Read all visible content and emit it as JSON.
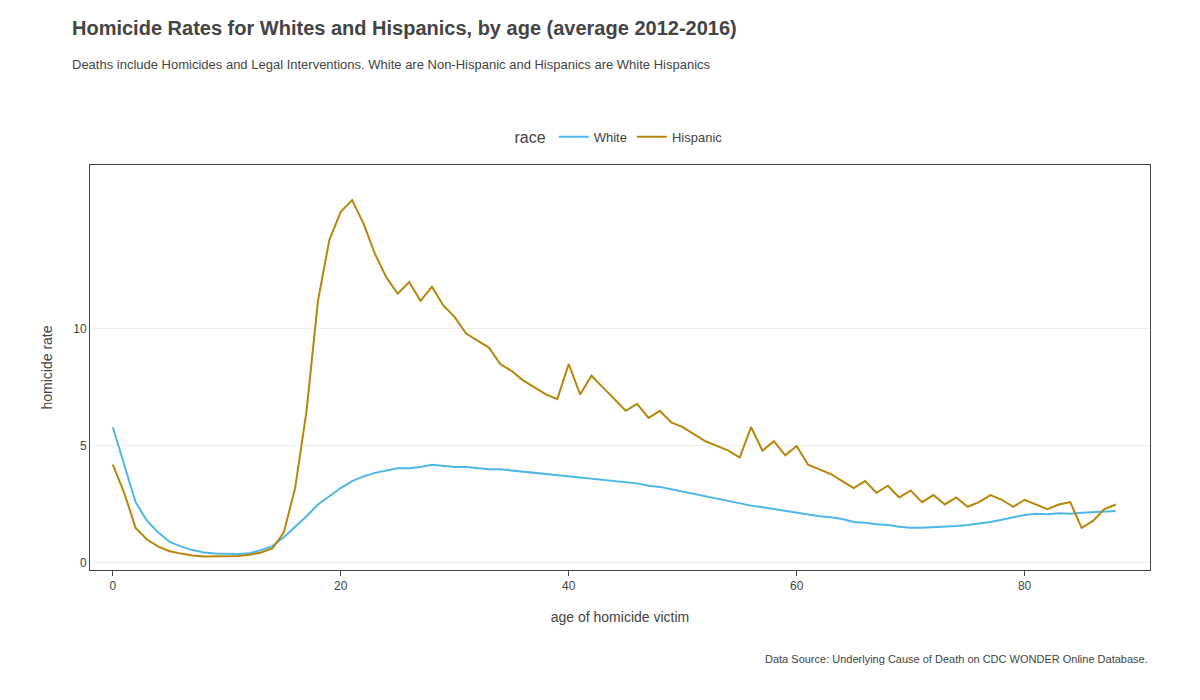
{
  "chart_data": {
    "type": "line",
    "title": "Homicide Rates for Whites and Hispanics, by age (average 2012-2016)",
    "subtitle": "Deaths include Homicides and Legal Interventions. White are Non-Hispanic and Hispanics are White Hispanics",
    "xlabel": "age of homicide victim",
    "ylabel": "homicide rate",
    "annotations": [
      "Data Source: Underlying Cause of Death on CDC WONDER Online Database."
    ],
    "legend_title": "race",
    "legend": "top",
    "grid": "y",
    "x": [
      0,
      1,
      2,
      3,
      4,
      5,
      6,
      7,
      8,
      9,
      10,
      11,
      12,
      13,
      14,
      15,
      16,
      17,
      18,
      19,
      20,
      21,
      22,
      23,
      24,
      25,
      26,
      27,
      28,
      29,
      30,
      31,
      32,
      33,
      34,
      35,
      36,
      37,
      38,
      39,
      40,
      41,
      42,
      43,
      44,
      45,
      46,
      47,
      48,
      49,
      50,
      51,
      52,
      53,
      54,
      55,
      56,
      57,
      58,
      59,
      60,
      61,
      62,
      63,
      64,
      65,
      66,
      67,
      68,
      69,
      70,
      71,
      72,
      73,
      74,
      75,
      76,
      77,
      78,
      79,
      80,
      81,
      82,
      83,
      84,
      85,
      86,
      87,
      88
    ],
    "series": [
      {
        "name": "White",
        "color": "#4db8e8",
        "values": [
          5.8,
          4.2,
          2.6,
          1.8,
          1.3,
          0.9,
          0.7,
          0.55,
          0.45,
          0.4,
          0.38,
          0.38,
          0.42,
          0.55,
          0.72,
          1.1,
          1.55,
          2.0,
          2.5,
          2.85,
          3.2,
          3.5,
          3.7,
          3.85,
          3.95,
          4.05,
          4.05,
          4.1,
          4.2,
          4.15,
          4.1,
          4.1,
          4.05,
          4.0,
          4.0,
          3.95,
          3.9,
          3.85,
          3.8,
          3.75,
          3.7,
          3.65,
          3.6,
          3.55,
          3.5,
          3.45,
          3.4,
          3.3,
          3.25,
          3.15,
          3.05,
          2.95,
          2.85,
          2.75,
          2.65,
          2.55,
          2.45,
          2.38,
          2.3,
          2.22,
          2.15,
          2.05,
          2.0,
          1.95,
          1.88,
          1.75,
          1.72,
          1.65,
          1.62,
          1.55,
          1.5,
          1.5,
          1.52,
          1.55,
          1.58,
          1.62,
          1.68,
          1.75,
          1.85,
          1.95,
          2.05,
          2.1,
          2.08,
          2.12,
          2.1,
          2.15,
          2.18,
          2.2,
          2.22
        ]
      },
      {
        "name": "Hispanic",
        "color": "#b8860b",
        "values": [
          4.2,
          3.0,
          1.5,
          1.0,
          0.7,
          0.5,
          0.4,
          0.32,
          0.28,
          0.28,
          0.28,
          0.3,
          0.35,
          0.45,
          0.62,
          1.3,
          3.2,
          6.5,
          11.2,
          13.8,
          15.0,
          15.5,
          14.5,
          13.2,
          12.2,
          11.5,
          12.0,
          11.2,
          11.8,
          11.0,
          10.5,
          9.8,
          9.5,
          9.2,
          8.5,
          8.2,
          7.8,
          7.5,
          7.2,
          7.0,
          8.5,
          7.2,
          8.0,
          7.5,
          7.0,
          6.5,
          6.8,
          6.2,
          6.5,
          6.0,
          5.8,
          5.5,
          5.2,
          5.0,
          4.8,
          4.5,
          5.8,
          4.8,
          5.2,
          4.6,
          5.0,
          4.2,
          4.0,
          3.8,
          3.5,
          3.2,
          3.5,
          3.0,
          3.3,
          2.8,
          3.1,
          2.6,
          2.9,
          2.5,
          2.8,
          2.4,
          2.6,
          2.9,
          2.7,
          2.4,
          2.7,
          2.5,
          2.3,
          2.5,
          2.6,
          1.5,
          1.8,
          2.3,
          2.5
        ]
      }
    ],
    "xlim": [
      -2,
      91
    ],
    "xticks": [
      0,
      20,
      40,
      60,
      80
    ],
    "ylim": [
      -0.3,
      17
    ],
    "yticks": [
      0,
      5,
      10
    ]
  }
}
